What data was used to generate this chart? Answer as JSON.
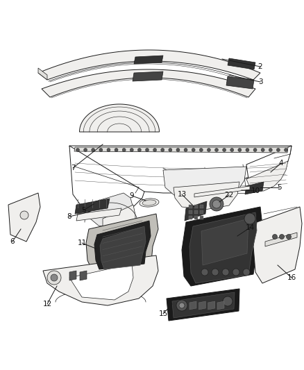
{
  "background_color": "#ffffff",
  "fig_width": 4.38,
  "fig_height": 5.33,
  "dpi": 100,
  "line_color": "#1a1a1a",
  "label_fontsize": 7.5,
  "label_color": "#111111",
  "fc_white": "#ffffff",
  "fc_light": "#f0efed",
  "fc_medium": "#e0dfdc",
  "fc_dark_part": "#2a2a2a",
  "fc_very_light": "#f8f7f5"
}
